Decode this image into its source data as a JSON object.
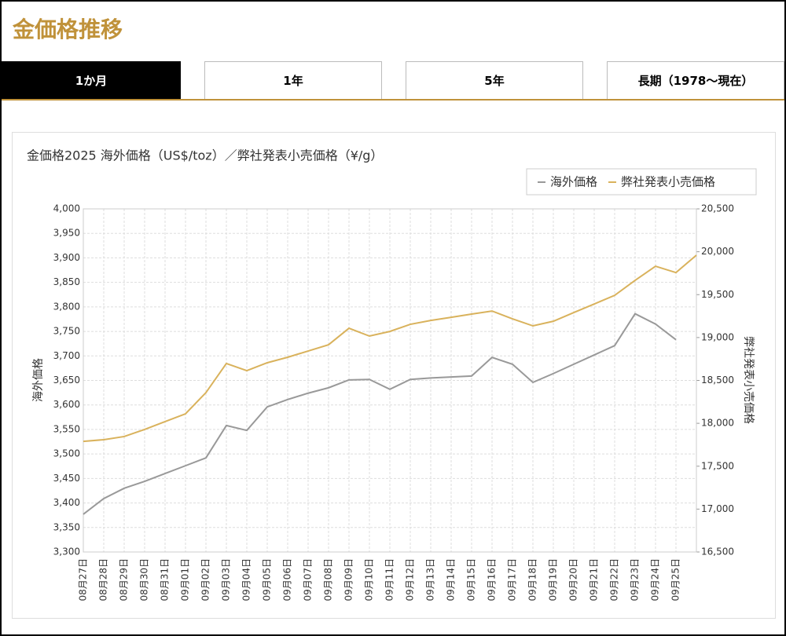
{
  "header": {
    "title": "金価格推移"
  },
  "tabs": [
    "1か月",
    "1年",
    "5年",
    "長期（1978〜現在）"
  ],
  "chart_data": {
    "type": "line",
    "title": "金価格2025 海外価格（US$/toz）／弊社発表小売価格（¥/g）",
    "ylabel": "海外価格",
    "y2label": "弊社発表小売価格",
    "grid": true,
    "legend": "top-right",
    "categories": [
      "08月27日",
      "08月28日",
      "08月29日",
      "08月30日",
      "08月31日",
      "09月01日",
      "09月02日",
      "09月03日",
      "09月04日",
      "09月05日",
      "09月06日",
      "09月07日",
      "09月08日",
      "09月09日",
      "09月10日",
      "09月11日",
      "09月12日",
      "09月13日",
      "09月14日",
      "09月15日",
      "09月16日",
      "09月17日",
      "09月18日",
      "09月19日",
      "09月20日",
      "09月21日",
      "09月22日",
      "09月23日",
      "09月24日",
      "09月25日",
      null
    ],
    "series": [
      {
        "name": "海外価格",
        "color": "#999999",
        "values": [
          3377,
          3409,
          3430,
          3444,
          3460,
          3476,
          3492,
          3558,
          3548,
          3596,
          3611,
          3624,
          3635,
          3651,
          3652,
          3632,
          3652,
          3655,
          3657,
          3659,
          3697,
          3683,
          3646,
          3664,
          3683,
          3702,
          3721,
          3786,
          3765,
          3733,
          null
        ]
      },
      {
        "name": "弊社発表小売価格",
        "color": "#d9b25c",
        "axis": "y2",
        "values": [
          17790,
          17809,
          17846,
          17929,
          18020,
          18111,
          18358,
          18697,
          18614,
          18706,
          18770,
          18843,
          18916,
          19108,
          19017,
          19071,
          19154,
          19199,
          19236,
          19273,
          19309,
          19218,
          19136,
          19190,
          19291,
          19391,
          19492,
          19666,
          19831,
          19757,
          19960
        ]
      }
    ],
    "ylim": [
      3300,
      4000
    ],
    "yticks": [
      {
        "value": 3300,
        "label": "3,300"
      },
      {
        "value": 3350,
        "label": "3,350"
      },
      {
        "value": 3400,
        "label": "3,400"
      },
      {
        "value": 3450,
        "label": "3,450"
      },
      {
        "value": 3500,
        "label": "3,500"
      },
      {
        "value": 3550,
        "label": "3,550"
      },
      {
        "value": 3600,
        "label": "3,600"
      },
      {
        "value": 3650,
        "label": "3,650"
      },
      {
        "value": 3700,
        "label": "3,700"
      },
      {
        "value": 3750,
        "label": "3,750"
      },
      {
        "value": 3800,
        "label": "3,800"
      },
      {
        "value": 3850,
        "label": "3,850"
      },
      {
        "value": 3900,
        "label": "3,900"
      },
      {
        "value": 3950,
        "label": "3,950"
      },
      {
        "value": 4000,
        "label": "4,000"
      }
    ],
    "y2lim": [
      16500,
      20500
    ],
    "y2ticks": [
      {
        "value": 16500,
        "label": "16,500"
      },
      {
        "value": 17000,
        "label": "17,000"
      },
      {
        "value": 17500,
        "label": "17,500"
      },
      {
        "value": 18000,
        "label": "18,000"
      },
      {
        "value": 18500,
        "label": "18,500"
      },
      {
        "value": 19000,
        "label": "19,000"
      },
      {
        "value": 19500,
        "label": "19,500"
      },
      {
        "value": 20000,
        "label": "20,000"
      },
      {
        "value": 20500,
        "label": "20,500"
      }
    ]
  }
}
